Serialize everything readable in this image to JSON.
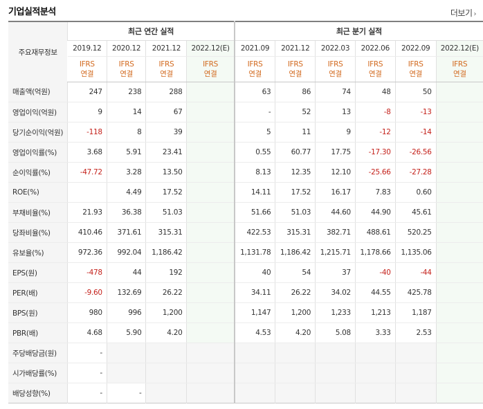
{
  "header": {
    "title": "기업실적분석",
    "more_label": "더보기"
  },
  "table": {
    "corner_label": "주요재무정보",
    "groups": {
      "annual": "최근 연간 실적",
      "quarterly": "최근 분기 실적"
    },
    "periods": [
      "2019.12",
      "2020.12",
      "2021.12",
      "2022.12(E)",
      "2021.09",
      "2021.12",
      "2022.03",
      "2022.06",
      "2022.09",
      "2022.12(E)"
    ],
    "ifrs": {
      "line1": "IFRS",
      "line2": "연결"
    },
    "rows": [
      {
        "label": "매출액(억원)",
        "values": [
          "247",
          "238",
          "288",
          "",
          "63",
          "86",
          "74",
          "48",
          "50",
          ""
        ]
      },
      {
        "label": "영업이익(억원)",
        "values": [
          "9",
          "14",
          "67",
          "",
          "-",
          "52",
          "13",
          "-8",
          "-13",
          ""
        ]
      },
      {
        "label": "당기순이익(억원)",
        "values": [
          "-118",
          "8",
          "39",
          "",
          "5",
          "11",
          "9",
          "-12",
          "-14",
          ""
        ]
      },
      {
        "label": "영업이익률(%)",
        "values": [
          "3.68",
          "5.91",
          "23.41",
          "",
          "0.55",
          "60.77",
          "17.75",
          "-17.30",
          "-26.56",
          ""
        ]
      },
      {
        "label": "순이익률(%)",
        "values": [
          "-47.72",
          "3.28",
          "13.50",
          "",
          "8.13",
          "12.35",
          "12.10",
          "-25.66",
          "-27.28",
          ""
        ]
      },
      {
        "label": "ROE(%)",
        "values": [
          "",
          "4.49",
          "17.52",
          "",
          "14.11",
          "17.52",
          "16.17",
          "7.83",
          "0.60",
          ""
        ]
      },
      {
        "label": "부채비율(%)",
        "values": [
          "21.93",
          "36.38",
          "51.03",
          "",
          "51.66",
          "51.03",
          "44.60",
          "44.90",
          "45.61",
          ""
        ]
      },
      {
        "label": "당좌비율(%)",
        "values": [
          "410.46",
          "371.61",
          "315.31",
          "",
          "422.53",
          "315.31",
          "382.71",
          "488.61",
          "520.25",
          ""
        ]
      },
      {
        "label": "유보율(%)",
        "values": [
          "972.36",
          "992.04",
          "1,186.42",
          "",
          "1,131.78",
          "1,186.42",
          "1,215.71",
          "1,178.66",
          "1,135.06",
          ""
        ]
      },
      {
        "label": "EPS(원)",
        "values": [
          "-478",
          "44",
          "192",
          "",
          "40",
          "54",
          "37",
          "-40",
          "-44",
          ""
        ]
      },
      {
        "label": "PER(배)",
        "values": [
          "-9.60",
          "132.69",
          "26.22",
          "",
          "34.11",
          "26.22",
          "34.02",
          "44.55",
          "425.78",
          ""
        ]
      },
      {
        "label": "BPS(원)",
        "values": [
          "980",
          "996",
          "1,200",
          "",
          "1,147",
          "1,200",
          "1,233",
          "1,213",
          "1,187",
          ""
        ]
      },
      {
        "label": "PBR(배)",
        "values": [
          "4.68",
          "5.90",
          "4.20",
          "",
          "4.53",
          "4.20",
          "5.08",
          "3.33",
          "2.53",
          ""
        ]
      },
      {
        "label": "주당배당금(원)",
        "values": [
          "-",
          "",
          "",
          "",
          "",
          "",
          "",
          "",
          "",
          ""
        ]
      },
      {
        "label": "시가배당률(%)",
        "values": [
          "-",
          "",
          "",
          "",
          "",
          "",
          "",
          "",
          "",
          ""
        ]
      },
      {
        "label": "배당성향(%)",
        "values": [
          "-",
          "-",
          "",
          "",
          "",
          "",
          "",
          "",
          "",
          ""
        ]
      }
    ]
  },
  "colors": {
    "negative": "#c4211b",
    "ifrs": "#d2691e",
    "estimate_bg": "#f4faf4"
  }
}
